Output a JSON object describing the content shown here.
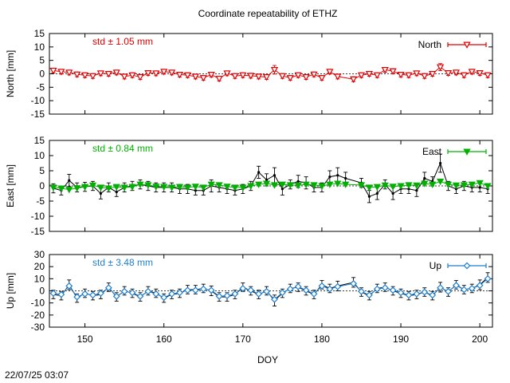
{
  "figure": {
    "title": "Coordinate repeatability of ETHZ",
    "timestamp": "22/07/25 03:07",
    "xlabel": "DOY"
  },
  "chart_data": [
    {
      "id": "north",
      "type": "line",
      "title": "Coordinate repeatability of ETHZ",
      "xlabel": "DOY",
      "ylabel": "North [mm]",
      "xlim": [
        145.5,
        201.6
      ],
      "ylim": [
        -15,
        15
      ],
      "yticks": [
        -15,
        -10,
        -5,
        0,
        5,
        10,
        15
      ],
      "std_label": "std ± 1.05 mm",
      "legend": "North",
      "legend_position": "top-right",
      "color": "#e00000",
      "marker": "triangle-down-open",
      "x": [
        146,
        147,
        148,
        149,
        150,
        151,
        152,
        153,
        154,
        155,
        156,
        157,
        158,
        159,
        160,
        161,
        162,
        163,
        164,
        165,
        166,
        167,
        168,
        169,
        170,
        171,
        172,
        173,
        174,
        175,
        176,
        177,
        178,
        179,
        180,
        181,
        182,
        184,
        185,
        186,
        187,
        188,
        189,
        190,
        191,
        192,
        193,
        194,
        195,
        196,
        197,
        198,
        199,
        200,
        201
      ],
      "values": [
        1.2,
        0.8,
        0.5,
        -0.2,
        -0.5,
        -0.8,
        0.2,
        0.0,
        0.5,
        -1.0,
        -0.5,
        -1.2,
        0.3,
        0.2,
        0.8,
        0.5,
        -0.3,
        -0.5,
        -1.0,
        -1.5,
        -0.3,
        -1.8,
        0.2,
        -0.8,
        -0.5,
        -0.7,
        -1.0,
        -1.2,
        1.5,
        -0.8,
        -1.5,
        -0.5,
        -1.2,
        -0.2,
        -1.5,
        0.8,
        -1.0,
        -2.0,
        -0.5,
        0.0,
        -0.5,
        1.5,
        1.0,
        -0.3,
        -0.5,
        0.2,
        -0.8,
        0.0,
        2.5,
        0.3,
        0.5,
        -0.5,
        0.8,
        0.3,
        -0.5
      ],
      "errors": [
        0.9,
        0.9,
        0.9,
        0.9,
        0.9,
        0.9,
        0.9,
        0.9,
        0.9,
        0.9,
        0.9,
        0.9,
        0.9,
        0.9,
        0.9,
        0.9,
        0.9,
        0.9,
        0.9,
        0.9,
        0.9,
        0.9,
        0.9,
        0.9,
        0.9,
        0.9,
        0.9,
        0.9,
        1.6,
        0.9,
        0.9,
        0.9,
        0.9,
        0.9,
        0.9,
        0.9,
        0.9,
        0.9,
        0.9,
        0.9,
        0.9,
        0.9,
        0.9,
        0.9,
        0.9,
        0.9,
        0.9,
        0.9,
        1.3,
        0.9,
        0.9,
        0.9,
        0.9,
        0.9,
        0.9
      ]
    },
    {
      "id": "east",
      "type": "line",
      "title": "",
      "xlabel": "DOY",
      "ylabel": "East [mm]",
      "xlim": [
        145.5,
        201.6
      ],
      "ylim": [
        -15,
        15
      ],
      "yticks": [
        -15,
        -10,
        -5,
        0,
        5,
        10,
        15
      ],
      "std_label": "std ± 0.84 mm",
      "legend": "East",
      "legend_position": "top-right",
      "color": "#00b000",
      "line_color": "#000000",
      "marker": "triangle-down-filled",
      "x": [
        146,
        147,
        148,
        149,
        150,
        151,
        152,
        153,
        154,
        155,
        156,
        157,
        158,
        159,
        160,
        161,
        162,
        163,
        164,
        165,
        166,
        167,
        168,
        169,
        170,
        171,
        172,
        173,
        174,
        175,
        176,
        177,
        178,
        179,
        180,
        181,
        182,
        183,
        185,
        186,
        187,
        188,
        189,
        190,
        191,
        192,
        193,
        194,
        195,
        196,
        197,
        198,
        199,
        200,
        201
      ],
      "values": [
        -0.8,
        -1.5,
        1.8,
        -0.5,
        -0.3,
        0.0,
        -2.5,
        -0.5,
        -2.0,
        -0.5,
        0.0,
        0.5,
        0.0,
        -0.5,
        -0.5,
        -0.5,
        -1.0,
        -1.0,
        -1.5,
        -1.5,
        0.0,
        -0.5,
        -1.0,
        -1.5,
        -1.0,
        0.0,
        4.5,
        2.0,
        3.5,
        -1.0,
        0.5,
        1.5,
        1.0,
        -0.5,
        -0.5,
        3.0,
        3.5,
        2.5,
        1.0,
        -3.5,
        -2.5,
        0.5,
        -2.5,
        -1.0,
        -1.0,
        -1.5,
        2.5,
        1.5,
        7.5,
        0.0,
        -1.0,
        0.0,
        -0.5,
        -0.5,
        -1.0
      ],
      "errors": [
        1.5,
        1.5,
        2.0,
        1.5,
        1.5,
        1.5,
        1.8,
        1.5,
        1.5,
        1.5,
        1.5,
        1.5,
        1.5,
        1.5,
        1.5,
        1.5,
        1.5,
        1.5,
        1.5,
        1.5,
        2.0,
        1.5,
        1.5,
        1.5,
        1.5,
        1.5,
        2.0,
        2.0,
        2.5,
        2.0,
        1.5,
        2.0,
        2.0,
        1.5,
        1.5,
        2.0,
        2.5,
        2.0,
        1.5,
        2.0,
        2.0,
        1.5,
        2.0,
        1.5,
        1.5,
        2.0,
        2.0,
        1.5,
        3.0,
        1.5,
        1.5,
        1.5,
        1.5,
        1.5,
        1.5
      ],
      "model_values": [
        -0.5,
        -0.8,
        -1.2,
        -0.7,
        -0.3,
        0.2,
        -0.5,
        -0.8,
        -0.3,
        -0.5,
        -0.3,
        0.5,
        0.3,
        -0.2,
        -0.3,
        -0.5,
        -0.3,
        -0.5,
        -0.2,
        -0.5,
        0.5,
        0.3,
        -0.2,
        -0.5,
        -0.5,
        0.0,
        0.5,
        0.8,
        0.3,
        0.5,
        0.3,
        0.2,
        0.5,
        0.3,
        0.0,
        0.5,
        0.8,
        0.5,
        0.3,
        -0.5,
        -0.3,
        0.2,
        -0.2,
        0.0,
        0.3,
        0.2,
        0.8,
        0.5,
        1.5,
        0.5,
        0.2,
        0.3,
        0.5,
        1.0,
        0.0
      ]
    },
    {
      "id": "up",
      "type": "line",
      "title": "",
      "xlabel": "DOY",
      "ylabel": "Up [mm]",
      "xlim": [
        145.5,
        201.6
      ],
      "ylim": [
        -30,
        30
      ],
      "yticks": [
        -30,
        -20,
        -10,
        0,
        10,
        20,
        30
      ],
      "std_label": "std ± 3.48 mm",
      "legend": "Up",
      "legend_position": "top-right",
      "color": "#1e7fd0",
      "line_color": "#000000",
      "marker": "diamond-open",
      "x": [
        146,
        147,
        148,
        149,
        150,
        151,
        152,
        153,
        154,
        155,
        156,
        157,
        158,
        159,
        160,
        161,
        162,
        163,
        164,
        165,
        166,
        167,
        168,
        169,
        170,
        171,
        172,
        173,
        174,
        175,
        176,
        177,
        178,
        179,
        180,
        181,
        182,
        184,
        185,
        186,
        187,
        188,
        189,
        190,
        191,
        192,
        193,
        194,
        195,
        196,
        197,
        198,
        199,
        200,
        201
      ],
      "values": [
        -3.0,
        -4.0,
        5.0,
        -6.0,
        -2.0,
        -4.0,
        -3.0,
        3.0,
        -5.0,
        0.0,
        -2.0,
        -5.0,
        0.0,
        -2.0,
        -6.0,
        -3.0,
        -2.0,
        1.0,
        1.0,
        2.0,
        0.0,
        -5.0,
        -5.0,
        -3.0,
        3.0,
        0.0,
        -3.0,
        0.0,
        -8.0,
        -2.0,
        2.0,
        3.0,
        0.0,
        -3.0,
        5.0,
        2.0,
        4.0,
        7.0,
        -1.0,
        -4.0,
        2.0,
        3.0,
        0.0,
        -2.0,
        -4.0,
        -3.0,
        -1.0,
        -4.0,
        3.0,
        -1.0,
        5.0,
        1.0,
        2.0,
        5.0,
        11.0
      ],
      "errors": [
        3.5,
        3.5,
        4.0,
        3.5,
        3.5,
        3.5,
        3.5,
        3.5,
        3.5,
        3.5,
        3.5,
        3.5,
        3.5,
        3.5,
        3.5,
        3.5,
        3.5,
        3.5,
        3.5,
        3.5,
        4.0,
        3.5,
        3.5,
        3.5,
        3.5,
        3.5,
        3.5,
        3.5,
        4.5,
        3.5,
        3.5,
        3.5,
        3.5,
        3.5,
        3.5,
        3.5,
        4.0,
        4.0,
        3.5,
        3.5,
        3.5,
        3.5,
        3.5,
        3.5,
        3.5,
        3.5,
        3.5,
        3.5,
        4.0,
        3.5,
        3.5,
        3.5,
        3.5,
        4.0,
        4.0
      ],
      "model_values": [
        -2.0,
        -3.0,
        4.0,
        -5.0,
        -2.5,
        -3.5,
        -2.0,
        2.5,
        -4.5,
        -0.5,
        -1.5,
        -4.5,
        -0.5,
        -2.5,
        -5.5,
        -2.5,
        -1.5,
        0.5,
        0.5,
        1.5,
        0.5,
        -4.5,
        -4.0,
        -2.5,
        2.0,
        0.5,
        -2.5,
        -0.5,
        -7.0,
        -1.5,
        1.5,
        3.5,
        0.5,
        -2.5,
        4.0,
        1.5,
        3.5,
        6.0,
        -0.5,
        -3.5,
        1.5,
        2.5,
        0.5,
        -1.5,
        -3.5,
        -2.5,
        -1.0,
        -3.5,
        2.5,
        -0.5,
        4.5,
        1.0,
        2.0,
        4.5,
        10.0
      ]
    }
  ],
  "xaxis": {
    "ticks": [
      150,
      160,
      170,
      180,
      190,
      200
    ]
  }
}
